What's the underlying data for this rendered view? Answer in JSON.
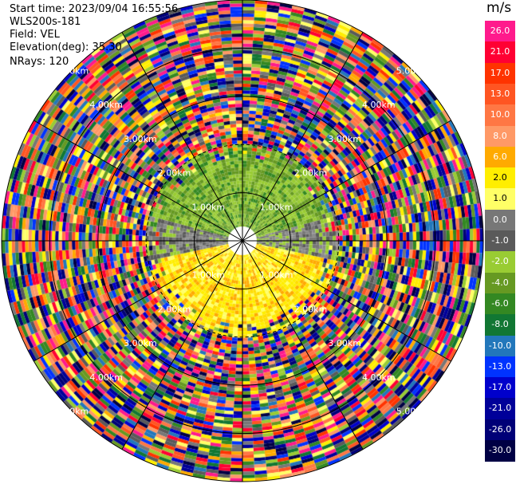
{
  "info": {
    "start_time": "Start time: 2023/09/04 16:55:56",
    "instrument": "WLS200s-181",
    "field": "Field: VEL",
    "elevation": "Elevation(deg): 35.30",
    "nrays": "NRays: 120"
  },
  "chart_data": {
    "type": "heatmap",
    "projection": "polar PPI",
    "field": "VEL",
    "unit": "m/s",
    "n_rays": 120,
    "range_ring_labels": [
      "1.00km",
      "2.00km",
      "3.00km",
      "4.00km",
      "5.00km"
    ],
    "range_ring_km": [
      1,
      2,
      3,
      4,
      5
    ],
    "radial_spokes_deg": [
      0,
      30,
      60,
      90,
      120,
      150,
      180,
      210,
      240,
      270,
      300,
      330
    ],
    "colorbar": {
      "title": "m/s",
      "tick_labels": [
        "26.0",
        "21.0",
        "17.0",
        "13.0",
        "10.0",
        "8.0",
        "6.0",
        "2.0",
        "1.0",
        "0.0",
        "-1.0",
        "-2.0",
        "-4.0",
        "-6.0",
        "-8.0",
        "-10.0",
        "-13.0",
        "-17.0",
        "-21.0",
        "-26.0",
        "-30.0"
      ],
      "colors": [
        "#ff1a8c",
        "#ff0033",
        "#ff3300",
        "#ff5522",
        "#ff7744",
        "#ff9966",
        "#ffaa00",
        "#ffee00",
        "#ffff66",
        "#777777",
        "#5a5a5a",
        "#99cc33",
        "#669922",
        "#338822",
        "#117733",
        "#2277bb",
        "#0033ff",
        "#0000cc",
        "#000099",
        "#000077",
        "#000044"
      ]
    },
    "observed_pattern": {
      "north_near_km_2": "negative velocities (-2 to -4 m/s, green)",
      "south_near_km_2": "positive velocities (1 to 2 m/s, yellow)",
      "east_west_near": "near zero (0 to -1 m/s, gray)",
      "beyond_km_2": "noise, full colour scale"
    }
  }
}
